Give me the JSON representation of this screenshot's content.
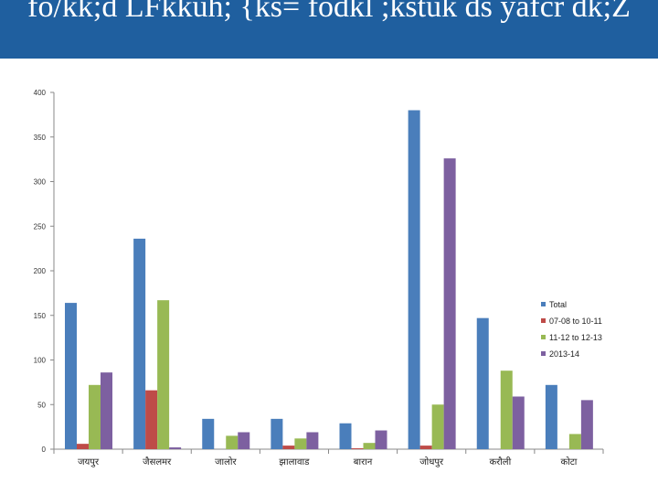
{
  "title": "fo/kk;d LFkkuh; {ks= fodkl ;kstuk ds yafcr dk;Z",
  "chart_data": {
    "type": "bar",
    "categories": [
      "जयपुर",
      "जैसलमर",
      "जालोर",
      "झालावाड",
      "बारान",
      "जोधपुर",
      "करौली",
      "कोटा"
    ],
    "series": [
      {
        "name": "Total",
        "color": "#4a7ebb",
        "values": [
          164,
          236,
          34,
          34,
          29,
          380,
          147,
          72
        ]
      },
      {
        "name": "07-08 to 10-11",
        "color": "#be4b48",
        "values": [
          6,
          66,
          0,
          4,
          1,
          4,
          0,
          0
        ]
      },
      {
        "name": "11-12 to 12-13",
        "color": "#98b954",
        "values": [
          72,
          167,
          15,
          12,
          7,
          50,
          88,
          17
        ]
      },
      {
        "name": "2013-14",
        "color": "#7d60a0",
        "values": [
          86,
          2,
          19,
          19,
          21,
          326,
          59,
          55
        ]
      }
    ],
    "ylim": [
      0,
      400
    ],
    "yticks": [
      0,
      50,
      100,
      150,
      200,
      250,
      300,
      350,
      400
    ],
    "grid": false,
    "legend_position": "right"
  }
}
